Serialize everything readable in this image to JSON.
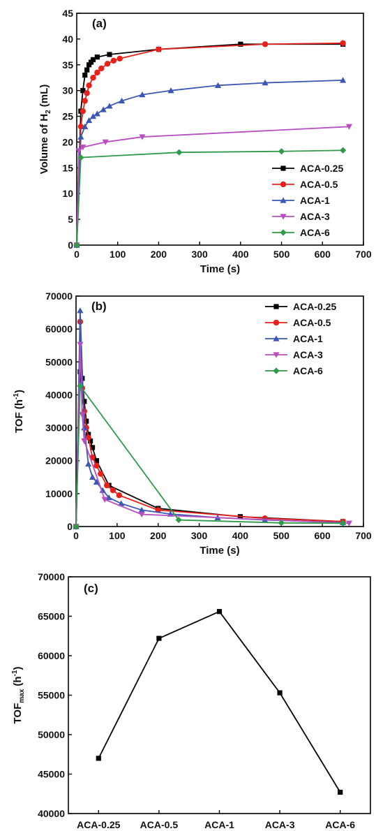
{
  "chart_data": [
    {
      "type": "line",
      "panel_label": "(a)",
      "xlabel": "Time (s)",
      "ylabel_main": "Volume of H",
      "ylabel_sub": "2",
      "ylabel_tail": " (mL)",
      "xlim": [
        0,
        700
      ],
      "ylim": [
        0,
        45
      ],
      "xticks": [
        0,
        100,
        200,
        300,
        400,
        500,
        600,
        700
      ],
      "yticks": [
        0,
        5,
        10,
        15,
        20,
        25,
        30,
        35,
        40,
        45
      ],
      "legend_position": "bottom-right",
      "series": [
        {
          "name": "ACA-0.25",
          "color": "#000000",
          "marker": "square",
          "x": [
            0,
            10,
            15,
            20,
            25,
            30,
            35,
            40,
            50,
            80,
            200,
            400,
            650
          ],
          "y": [
            0,
            26,
            30,
            33,
            34,
            35,
            35.5,
            36,
            36.5,
            37,
            38,
            39,
            39
          ]
        },
        {
          "name": "ACA-0.5",
          "color": "#e8211b",
          "marker": "circle",
          "x": [
            0,
            10,
            15,
            20,
            25,
            30,
            40,
            50,
            60,
            75,
            90,
            105,
            200,
            460,
            650
          ],
          "y": [
            0,
            23,
            26,
            28,
            29.5,
            31,
            32.5,
            33.5,
            34.3,
            35.2,
            35.8,
            36.2,
            38,
            39,
            39.2
          ]
        },
        {
          "name": "ACA-1",
          "color": "#3a57b4",
          "marker": "triangle-up",
          "x": [
            0,
            10,
            20,
            30,
            40,
            50,
            65,
            80,
            110,
            160,
            230,
            345,
            460,
            650
          ],
          "y": [
            0,
            21,
            23,
            24.2,
            25,
            25.5,
            26.3,
            27,
            28,
            29.2,
            30,
            31,
            31.5,
            32
          ]
        },
        {
          "name": "ACA-3",
          "color": "#b84fc0",
          "marker": "triangle-down",
          "x": [
            0,
            5,
            15,
            70,
            160,
            665
          ],
          "y": [
            0,
            18.3,
            19,
            20,
            21,
            23
          ]
        },
        {
          "name": "ACA-6",
          "color": "#2f9a4a",
          "marker": "diamond",
          "x": [
            0,
            10,
            250,
            500,
            650
          ],
          "y": [
            0,
            17,
            18,
            18.2,
            18.4
          ]
        }
      ]
    },
    {
      "type": "line",
      "panel_label": "(b)",
      "xlabel": "Time (s)",
      "ylabel_main": "TOF (h",
      "ylabel_sup": "-1",
      "ylabel_tail": ")",
      "xlim": [
        0,
        700
      ],
      "ylim": [
        0,
        70000
      ],
      "xticks": [
        0,
        100,
        200,
        300,
        400,
        500,
        600,
        700
      ],
      "yticks": [
        0,
        10000,
        20000,
        30000,
        40000,
        50000,
        60000,
        70000
      ],
      "legend_position": "top-right",
      "series": [
        {
          "name": "ACA-0.25",
          "color": "#000000",
          "marker": "square",
          "x": [
            0,
            10,
            15,
            20,
            25,
            30,
            35,
            40,
            50,
            80,
            200,
            400,
            650
          ],
          "y": [
            0,
            47000,
            45000,
            38000,
            32000,
            28000,
            26000,
            24000,
            20000,
            12500,
            5500,
            3000,
            1500
          ]
        },
        {
          "name": "ACA-0.5",
          "color": "#e8211b",
          "marker": "circle",
          "x": [
            0,
            10,
            15,
            20,
            25,
            30,
            40,
            50,
            60,
            75,
            90,
            105,
            200,
            460,
            650
          ],
          "y": [
            0,
            62200,
            42000,
            35000,
            30000,
            27000,
            21000,
            18500,
            16000,
            12500,
            11000,
            9500,
            5000,
            2500,
            1500
          ]
        },
        {
          "name": "ACA-1",
          "color": "#3a57b4",
          "marker": "triangle-up",
          "x": [
            0,
            10,
            20,
            30,
            40,
            50,
            65,
            80,
            110,
            160,
            230,
            345,
            460,
            650
          ],
          "y": [
            0,
            65600,
            30000,
            19000,
            15000,
            13500,
            11000,
            8800,
            7000,
            5000,
            3800,
            2700,
            2000,
            1200
          ]
        },
        {
          "name": "ACA-3",
          "color": "#b84fc0",
          "marker": "triangle-down",
          "x": [
            0,
            10,
            15,
            20,
            70,
            160,
            665
          ],
          "y": [
            0,
            55300,
            34000,
            26000,
            8200,
            3700,
            1000
          ]
        },
        {
          "name": "ACA-6",
          "color": "#2f9a4a",
          "marker": "diamond",
          "x": [
            0,
            10,
            250,
            500,
            650
          ],
          "y": [
            0,
            42700,
            2000,
            1100,
            1000
          ]
        }
      ]
    },
    {
      "type": "line",
      "panel_label": "(c)",
      "xlabel": "",
      "ylabel_main": "TOF",
      "ylabel_sub": "max",
      "ylabel_tail": " (h",
      "ylabel_sup": "-1",
      "ylabel_end": ")",
      "ylim": [
        40000,
        70000
      ],
      "yticks": [
        40000,
        45000,
        50000,
        55000,
        60000,
        65000,
        70000
      ],
      "categories": [
        "ACA-0.25",
        "ACA-0.5",
        "ACA-1",
        "ACA-3",
        "ACA-6"
      ],
      "series": [
        {
          "name": "",
          "color": "#000000",
          "marker": "square",
          "values": [
            47000,
            62200,
            65600,
            55300,
            42700
          ]
        }
      ]
    }
  ]
}
